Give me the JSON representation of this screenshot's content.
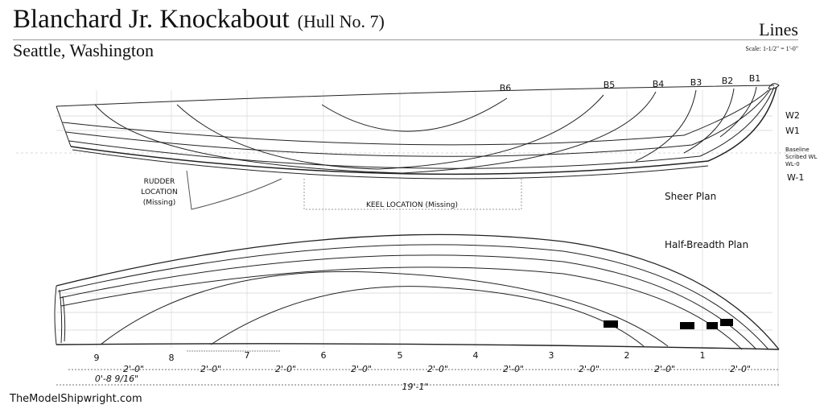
{
  "header": {
    "title": "Blanchard Jr. Knockabout",
    "hull": "(Hull No. 7)",
    "subtitle": "Seattle, Washington",
    "drawing_type": "Lines",
    "scale": "Scale: 1-1/2\" = 1'-0\""
  },
  "sheer_plan": {
    "label": "Sheer Plan",
    "buttock_labels": [
      "B6",
      "B5",
      "B4",
      "B3",
      "B2",
      "B1"
    ],
    "waterline_labels": [
      "W2",
      "W1",
      "W-1"
    ],
    "baseline_note": [
      "Baseline",
      "Scribed WL",
      "WL-0"
    ],
    "rudder_note": [
      "RUDDER",
      "LOCATION",
      "(Missing)"
    ],
    "keel_note": "KEEL LOCATION (Missing)"
  },
  "half_breadth_plan": {
    "label": "Half-Breadth Plan"
  },
  "stations": {
    "labels": [
      "9",
      "8",
      "7",
      "6",
      "5",
      "4",
      "3",
      "2",
      "1"
    ]
  },
  "dimensions": {
    "spacing_labels": [
      "0'-8 9/16\"",
      "2'-0\"",
      "2'-0\"",
      "2'-0\"",
      "2'-0\"",
      "2'-0\"",
      "2'-0\"",
      "2'-0\"",
      "2'-0\"",
      "2'-0\""
    ],
    "overall": "19'-1\""
  },
  "credit": "TheModelShipwright.com"
}
